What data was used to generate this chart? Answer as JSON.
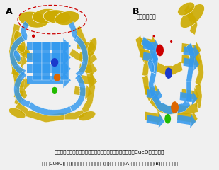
{
  "title_line1": "ヘリックス領域の削除による大腸菌の一価銅オキシダーゼCueOの機能改変",
  "title_line2": "野生型CueO(黄色)とヘリックス削除変异体(青)の全体構造(A)と銀活性中心構造(B)の重ね合わせ",
  "label_A": "A",
  "label_B": "B",
  "label_substrate": "基質結合部位",
  "bg_color": "#f0f0f0",
  "panel_bg": "#ffffff",
  "dashed_circle_color": "#cc0000",
  "sphere_blue": "#1a3acc",
  "sphere_orange": "#dd6600",
  "sphere_green": "#22bb00",
  "sphere_red": "#cc0000",
  "protein_blue": "#3399ee",
  "protein_yellow": "#ccaa00",
  "font_size_label": 9,
  "font_size_text": 5.2,
  "font_size_substrate": 5.5
}
